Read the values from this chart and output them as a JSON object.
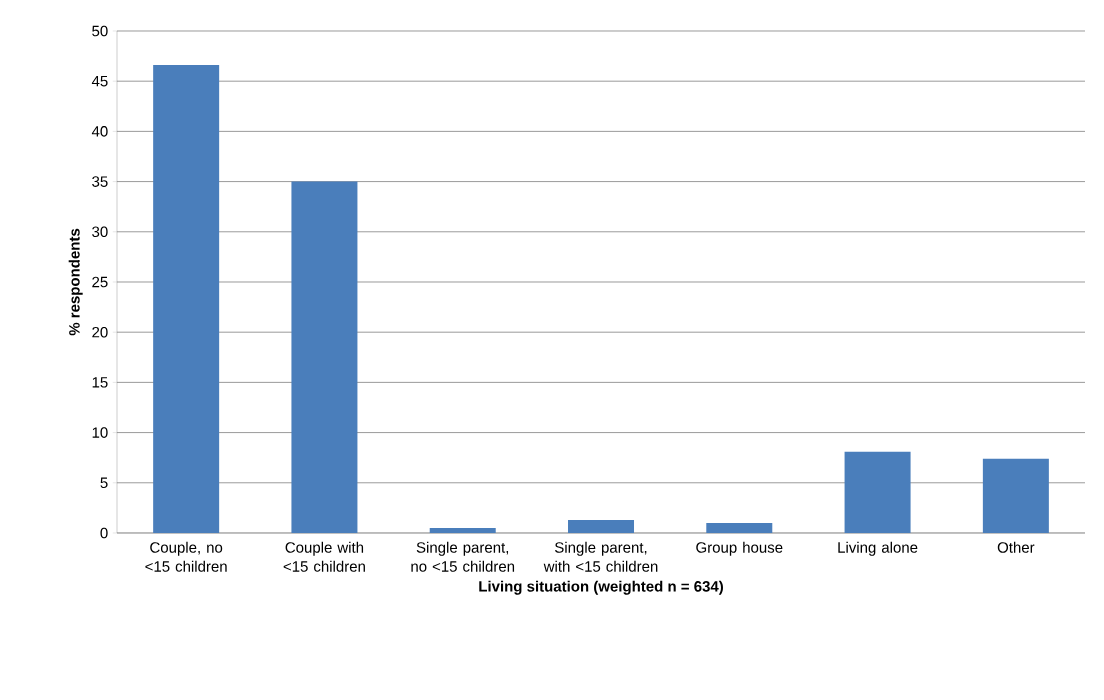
{
  "chart_data": {
    "type": "bar",
    "xlabel": "Living situation (weighted n = 634)",
    "ylabel": "% respondents",
    "categories": [
      "Couple, no <15 children",
      "Couple with <15 children",
      "Single parent, no <15 children",
      "Single parent, with <15 children",
      "Group house",
      "Living alone",
      "Other"
    ],
    "values": [
      46.6,
      35.0,
      0.5,
      1.3,
      1.0,
      8.1,
      7.4
    ],
    "color": "#4a7ebb",
    "ylim": [
      0,
      50
    ],
    "yticks": [
      0,
      5,
      10,
      15,
      20,
      25,
      30,
      35,
      40,
      45,
      50
    ],
    "grid": "y"
  }
}
